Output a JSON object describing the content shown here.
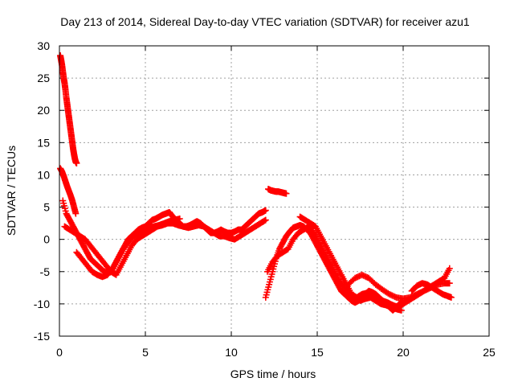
{
  "chart_data": {
    "type": "scatter",
    "title": "Day 213 of 2014, Sidereal Day-to-day VTEC variation (SDTVAR) for receiver azu1",
    "xlabel": "GPS time / hours",
    "ylabel": "SDTVAR / TECUs",
    "xlim": [
      0,
      25
    ],
    "ylim": [
      -15,
      30
    ],
    "xticks": [
      0,
      5,
      10,
      15,
      20,
      25
    ],
    "yticks": [
      -15,
      -10,
      -5,
      0,
      5,
      10,
      15,
      20,
      25,
      30
    ],
    "xtick_labels": [
      "0",
      "5",
      "10",
      "15",
      "20",
      "25"
    ],
    "ytick_labels": [
      "-15",
      "-10",
      "-5",
      "0",
      "5",
      "10",
      "15",
      "20",
      "25",
      "30"
    ],
    "grid": true,
    "marker": "+",
    "color": "#ff0000",
    "series": [
      {
        "name": "arc-1",
        "x": [
          0.05,
          0.1,
          0.15,
          0.2,
          0.25,
          0.3,
          0.35,
          0.4,
          0.45,
          0.5,
          0.55,
          0.6,
          0.65,
          0.7,
          0.75,
          0.8,
          0.85,
          0.9,
          0.95,
          1.0
        ],
        "y": [
          28.5,
          27.8,
          27,
          26,
          25,
          24.2,
          23.2,
          22,
          21,
          20,
          19,
          18,
          17,
          16,
          15,
          14,
          13.2,
          12.5,
          12,
          11.8
        ]
      },
      {
        "name": "arc-2",
        "x": [
          0.05,
          0.15,
          0.25,
          0.35,
          0.45,
          0.55,
          0.65,
          0.75,
          0.85,
          0.95
        ],
        "y": [
          11,
          10.5,
          9.8,
          9,
          8.2,
          7.5,
          6.8,
          6,
          5,
          4
        ]
      },
      {
        "name": "arc-3",
        "x": [
          0.2,
          0.4,
          0.6,
          0.8,
          1.0,
          1.2,
          1.4,
          1.6,
          1.8,
          2.0,
          2.2,
          2.4,
          2.6,
          2.8,
          3.0,
          3.2,
          3.4,
          3.6,
          3.8,
          4.0,
          4.2,
          4.4,
          4.6,
          4.8,
          5.0,
          5.2,
          5.4,
          5.6,
          5.8,
          6.0,
          6.2,
          6.4,
          6.6,
          6.8,
          7.0,
          7.2,
          7.4,
          7.6,
          7.8,
          8.0,
          8.2,
          8.4,
          8.6,
          8.8,
          9.0,
          9.2,
          9.4,
          9.6,
          9.8,
          10.0,
          10.2,
          10.4,
          10.6,
          10.8,
          11.0,
          11.2,
          11.4,
          11.6,
          11.8,
          12.0
        ],
        "y": [
          6,
          4,
          3,
          2,
          1,
          0,
          -1,
          -2,
          -3,
          -3.5,
          -4,
          -4.5,
          -5,
          -5.2,
          -5,
          -4,
          -3,
          -2,
          -1,
          0,
          0.5,
          1,
          1.5,
          1.8,
          2,
          2.5,
          3,
          3.2,
          3.5,
          3.8,
          4,
          4.2,
          3.5,
          3,
          2.5,
          2,
          2,
          2.2,
          2.5,
          2.8,
          2.5,
          2,
          1.5,
          1,
          1,
          1.2,
          1.5,
          1.2,
          1,
          1,
          1.2,
          1.5,
          1.5,
          2,
          2.5,
          3,
          3.5,
          4,
          4.2,
          4.5
        ]
      },
      {
        "name": "arc-4",
        "x": [
          0.3,
          0.6,
          0.9,
          1.2,
          1.5,
          1.8,
          2.1,
          2.4,
          2.7,
          3.0,
          3.3,
          3.6,
          3.9,
          4.2,
          4.5,
          4.8,
          5.1,
          5.4,
          5.7,
          6.0,
          6.3,
          6.6,
          6.9,
          7.2,
          7.5,
          7.8,
          8.1,
          8.4,
          8.7,
          9.0,
          9.3,
          9.6,
          9.9,
          10.2,
          10.5,
          10.8,
          11.1,
          11.4,
          11.7,
          12.0
        ],
        "y": [
          2,
          1.5,
          1,
          0.5,
          0,
          -1,
          -2,
          -3,
          -4,
          -5,
          -5.5,
          -4,
          -2.5,
          -1,
          0,
          0.5,
          1,
          1.5,
          2,
          2.2,
          2.5,
          2.5,
          2.2,
          2,
          1.8,
          2,
          2.2,
          2,
          1.5,
          1,
          0.5,
          0.5,
          0.2,
          0,
          0.5,
          1,
          1.5,
          2,
          2.5,
          3
        ]
      },
      {
        "name": "arc-5",
        "x": [
          1.0,
          1.3,
          1.6,
          1.9,
          2.2,
          2.5,
          2.8,
          3.1,
          3.4,
          3.7,
          4.0,
          4.3,
          4.6,
          4.9,
          5.2,
          5.5,
          5.8,
          6.1,
          6.4,
          6.7,
          7.0
        ],
        "y": [
          -2,
          -3,
          -4,
          -5,
          -5.5,
          -5.8,
          -5.5,
          -4.5,
          -3,
          -1.5,
          -0.5,
          0.5,
          1,
          1.5,
          1.8,
          2,
          2.2,
          2.5,
          2.8,
          3,
          3.2
        ]
      },
      {
        "name": "arc-6",
        "x": [
          12.15,
          12.3,
          12.45,
          12.6,
          12.75,
          12.9,
          13.05,
          13.2
        ],
        "y": [
          7.8,
          7.6,
          7.5,
          7.4,
          7.4,
          7.3,
          7.2,
          7.1
        ]
      },
      {
        "name": "arc-7",
        "x": [
          12.0,
          12.2,
          12.4,
          12.6,
          12.8,
          13.0,
          13.2,
          13.4,
          13.6,
          13.8,
          14.0,
          14.2,
          14.4,
          14.6,
          14.8,
          15.0,
          15.2,
          15.4,
          15.6,
          15.8,
          16.0,
          16.2,
          16.4,
          16.6,
          16.8,
          17.0,
          17.2,
          17.4,
          17.6,
          17.8,
          18.0,
          18.2,
          18.4,
          18.6,
          18.8,
          19.0,
          19.2,
          19.4,
          19.6,
          19.8,
          20.0
        ],
        "y": [
          -9,
          -7,
          -5,
          -3,
          -1.5,
          -0.5,
          0.5,
          1.2,
          1.8,
          2,
          2.2,
          2,
          1.5,
          1,
          0,
          -1,
          -2,
          -3,
          -4,
          -5,
          -6,
          -7,
          -8,
          -8.5,
          -9,
          -9.5,
          -9.8,
          -9.5,
          -9,
          -8.5,
          -8,
          -8.2,
          -8.5,
          -9,
          -9.5,
          -10,
          -10.5,
          -11,
          -10.5,
          -10,
          -9.5
        ]
      },
      {
        "name": "arc-8",
        "x": [
          12.1,
          12.4,
          12.7,
          13.0,
          13.3,
          13.6,
          13.9,
          14.2,
          14.5,
          14.8,
          15.1,
          15.4,
          15.7,
          16.0,
          16.3,
          16.6,
          16.9,
          17.2,
          17.5,
          17.8,
          18.1,
          18.4,
          18.7,
          19.0,
          19.3,
          19.6,
          19.9
        ],
        "y": [
          -5,
          -3.5,
          -2.5,
          -2,
          -1.5,
          0,
          1,
          1.5,
          2,
          1,
          -0.5,
          -2,
          -3.5,
          -5,
          -6.5,
          -7.5,
          -8.5,
          -9,
          -9.5,
          -9.2,
          -9,
          -9.5,
          -10,
          -10.2,
          -10.5,
          -10.8,
          -11
        ]
      },
      {
        "name": "arc-9",
        "x": [
          14.0,
          14.3,
          14.6,
          14.9,
          15.2,
          15.5,
          15.8,
          16.1,
          16.4,
          16.7,
          17.0,
          17.3,
          17.6,
          17.9,
          18.2,
          18.5,
          18.8,
          19.1,
          19.4,
          19.7,
          20.0,
          20.3,
          20.6,
          20.9,
          21.2,
          21.5,
          21.8,
          22.1,
          22.4,
          22.7
        ],
        "y": [
          3.5,
          3,
          2.5,
          2,
          0.5,
          -1,
          -2.5,
          -4,
          -5.5,
          -7,
          -8.5,
          -9,
          -8.5,
          -8.3,
          -8.6,
          -9,
          -9.5,
          -9.8,
          -10.2,
          -10.5,
          -10,
          -9.5,
          -9,
          -8.5,
          -8,
          -7.5,
          -7,
          -6.5,
          -6,
          -4.5
        ]
      },
      {
        "name": "arc-10",
        "x": [
          16.8,
          17.2,
          17.6,
          18.0,
          18.4,
          18.8,
          19.2,
          19.6,
          20.0,
          20.4,
          20.8,
          21.2,
          21.6,
          22.0,
          22.4,
          22.7
        ],
        "y": [
          -7,
          -6,
          -5.5,
          -6,
          -7,
          -7.8,
          -8.5,
          -9,
          -9.2,
          -9,
          -8.5,
          -8,
          -7.5,
          -7,
          -6.8,
          -6.8
        ]
      },
      {
        "name": "arc-11",
        "x": [
          20.5,
          20.8,
          21.1,
          21.4,
          21.7,
          22.0,
          22.3,
          22.6,
          22.8
        ],
        "y": [
          -8,
          -7.2,
          -6.8,
          -7,
          -7.5,
          -8,
          -8.5,
          -8.8,
          -9
        ]
      }
    ]
  }
}
